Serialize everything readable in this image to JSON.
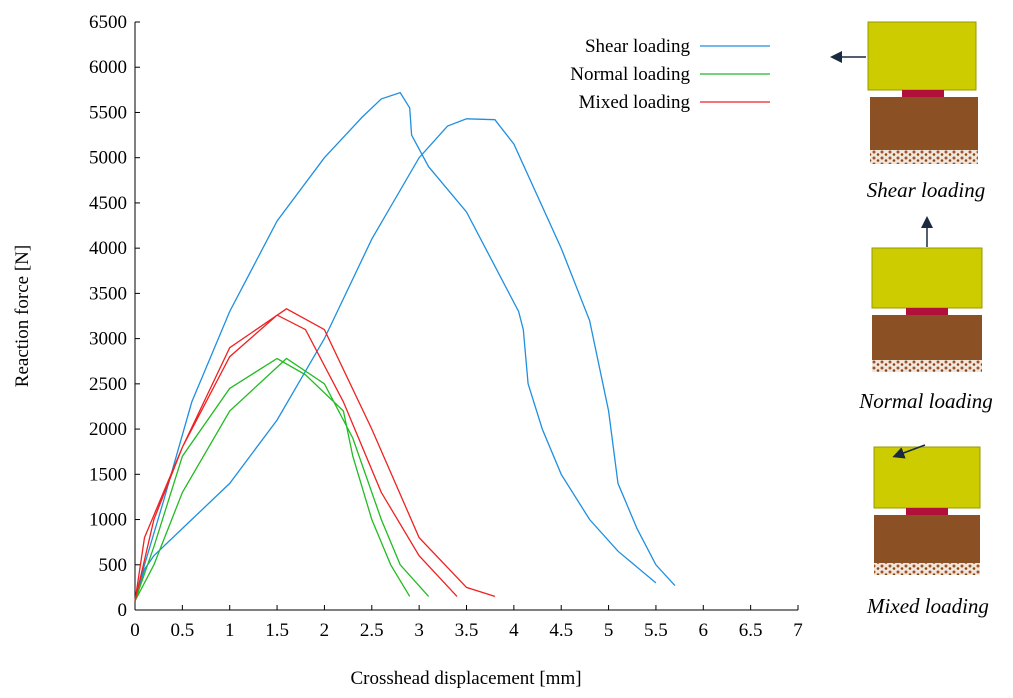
{
  "chart_data": {
    "type": "line",
    "xlabel": "Crosshead displacement [mm]",
    "ylabel": "Reaction force [N]",
    "xlim": [
      0,
      7
    ],
    "xticks": [
      0,
      0.5,
      1,
      1.5,
      2,
      2.5,
      3,
      3.5,
      4,
      4.5,
      5,
      5.5,
      6,
      6.5,
      7
    ],
    "ylim": [
      0,
      6500
    ],
    "yticks": [
      0,
      500,
      1000,
      1500,
      2000,
      2500,
      3000,
      3500,
      4000,
      4500,
      5000,
      5500,
      6000,
      6500
    ],
    "legend": "top-right",
    "series": [
      {
        "name": "Shear loading",
        "color": "#1f8fe0",
        "x": [
          0,
          0.1,
          0.3,
          0.6,
          1,
          1.5,
          2,
          2.4,
          2.6,
          2.8,
          2.9,
          2.92,
          3.1,
          3.5,
          3.8,
          4.05,
          4.1,
          4.15,
          4.3,
          4.5,
          4.8,
          5.1,
          5.5,
          null,
          0,
          0.1,
          0.2,
          0.6,
          1,
          1.5,
          2,
          2.5,
          3,
          3.3,
          3.5,
          3.8,
          4,
          4.5,
          4.8,
          5,
          5.1,
          5.3,
          5.5,
          5.7
        ],
        "values": [
          100,
          500,
          1200,
          2300,
          3300,
          4300,
          5000,
          5450,
          5650,
          5720,
          5550,
          5250,
          4900,
          4400,
          3800,
          3300,
          3100,
          2500,
          2000,
          1500,
          1000,
          650,
          300,
          null,
          100,
          450,
          600,
          1000,
          1400,
          2100,
          3000,
          4100,
          5000,
          5350,
          5430,
          5420,
          5150,
          4000,
          3200,
          2200,
          1400,
          900,
          500,
          270
        ]
      },
      {
        "name": "Normal loading",
        "color": "#22bb22",
        "x": [
          0,
          0.2,
          0.5,
          1,
          1.5,
          1.8,
          2.2,
          2.3,
          2.5,
          2.7,
          2.9,
          null,
          0,
          0.2,
          0.5,
          1,
          1.6,
          2,
          2.3,
          2.6,
          2.8,
          3.1
        ],
        "values": [
          100,
          700,
          1700,
          2450,
          2780,
          2600,
          2200,
          1700,
          1000,
          500,
          150,
          null,
          100,
          500,
          1300,
          2200,
          2780,
          2500,
          1900,
          1000,
          500,
          150
        ]
      },
      {
        "name": "Mixed loading",
        "color": "#ee2222",
        "x": [
          0,
          0.1,
          0.5,
          1,
          1.5,
          1.8,
          2.2,
          2.6,
          3,
          3.4,
          null,
          0,
          0.2,
          0.5,
          1,
          1.6,
          2,
          2.5,
          3,
          3.5,
          3.8
        ],
        "values": [
          100,
          800,
          1800,
          2800,
          3260,
          3100,
          2300,
          1300,
          600,
          150,
          null,
          100,
          1000,
          1800,
          2900,
          3330,
          3100,
          2000,
          800,
          250,
          150
        ]
      }
    ],
    "annotations": [
      "Shear loading",
      "Normal loading",
      "Mixed loading"
    ]
  }
}
